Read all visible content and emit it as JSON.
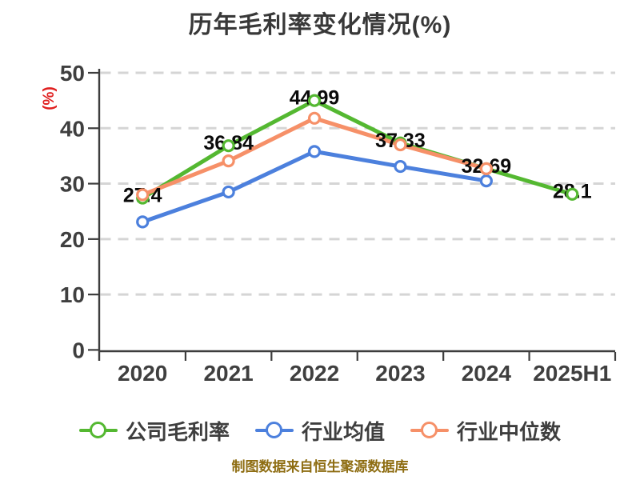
{
  "title": "历年毛利率变化情况(%)",
  "y_axis_label": "(%)",
  "footer": "制图数据来自恒生聚源数据库",
  "legend": {
    "items": [
      {
        "label": "公司毛利率",
        "color": "#54b831"
      },
      {
        "label": "行业均值",
        "color": "#4c80dd"
      },
      {
        "label": "行业中位数",
        "color": "#f69068"
      }
    ]
  },
  "colors": {
    "company_line": "#54b831",
    "industry_avg_line": "#4c80dd",
    "industry_median_line": "#f69068",
    "grid": "#d5d5d5",
    "axis": "#3d3d3d",
    "tick_text": "#3f3f3f",
    "data_label_text": "#0a0a0a",
    "title_text": "#383838",
    "y_axis_title_text": "#e01f1f",
    "footer_text": "#8e6d12",
    "marker_fill": "#ffffff"
  },
  "chart_data": {
    "type": "line",
    "title": "历年毛利率变化情况(%)",
    "xlabel": "",
    "ylabel": "(%)",
    "categories": [
      "2020",
      "2021",
      "2022",
      "2023",
      "2024",
      "2025H1"
    ],
    "y_ticks": [
      0,
      10,
      20,
      30,
      40,
      50
    ],
    "ylim": [
      0,
      50
    ],
    "grid": "horizontal-dashed",
    "legend_position": "bottom",
    "series": [
      {
        "name": "公司毛利率",
        "color": "#54b831",
        "values": [
          27.4,
          36.84,
          44.99,
          37.33,
          32.69,
          28.1
        ],
        "point_labels": [
          "27.4",
          "36.84",
          "44.99",
          "37.33",
          "32.69",
          "28.1"
        ]
      },
      {
        "name": "行业均值",
        "color": "#4c80dd",
        "values": [
          23.1,
          28.5,
          35.8,
          33.1,
          30.5,
          null
        ],
        "point_labels": []
      },
      {
        "name": "行业中位数",
        "color": "#f69068",
        "values": [
          28.0,
          34.1,
          41.8,
          37.0,
          32.7,
          null
        ],
        "point_labels": []
      }
    ]
  }
}
